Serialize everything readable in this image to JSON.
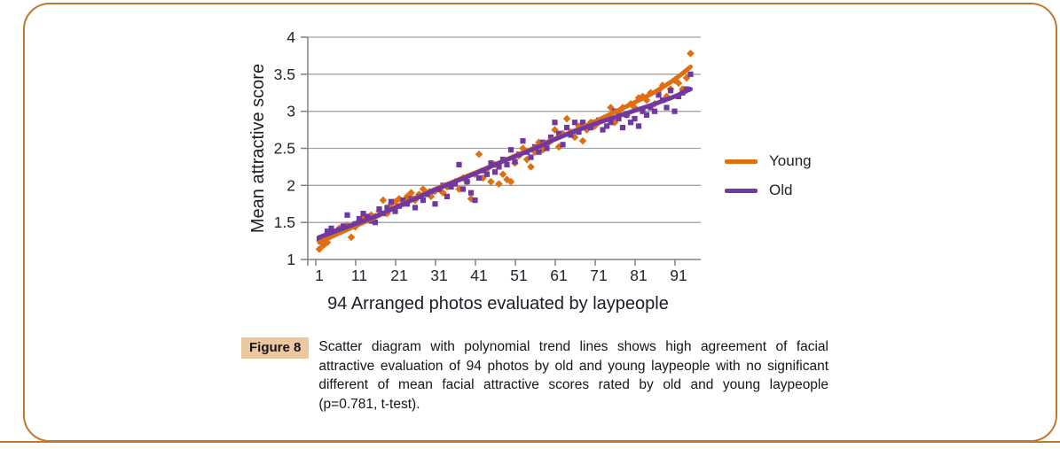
{
  "page": {
    "card_border_color": "#C1782F",
    "bottom_rule_color": "#C1782F",
    "background": "#ffffff"
  },
  "chart_data": {
    "type": "scatter",
    "title": "",
    "xlabel": "94 Arranged photos evaluated by laypeople",
    "ylabel": "Mean attractive score",
    "x_ticks": [
      1,
      11,
      21,
      31,
      41,
      51,
      61,
      71,
      81,
      91
    ],
    "y_ticks": [
      1,
      1.5,
      2,
      2.5,
      3,
      3.5,
      4
    ],
    "xlim": [
      1,
      94
    ],
    "ylim": [
      1,
      4
    ],
    "grid": "horizontal",
    "gridline_color": "#A3A3A3",
    "axis_color": "#808080",
    "tick_label_color": "#23232d",
    "legend_position": "right",
    "x_description": "photo rank 1 to 94, one point per photo, step 1",
    "series": [
      {
        "name": "Young",
        "marker": "diamond",
        "color": "#E06F12",
        "values": [
          1.14,
          1.19,
          1.23,
          1.4,
          1.35,
          1.42,
          1.4,
          1.46,
          1.3,
          1.44,
          1.52,
          1.58,
          1.55,
          1.6,
          1.58,
          1.65,
          1.8,
          1.62,
          1.75,
          1.78,
          1.82,
          1.75,
          1.85,
          1.9,
          1.8,
          1.88,
          1.95,
          1.9,
          1.85,
          1.92,
          1.95,
          1.9,
          1.98,
          2.0,
          2.05,
          1.95,
          2.1,
          2.05,
          1.82,
          2.15,
          2.42,
          2.1,
          2.22,
          2.05,
          2.28,
          2.02,
          2.15,
          2.08,
          2.05,
          2.3,
          2.4,
          2.5,
          2.35,
          2.25,
          2.45,
          2.58,
          2.48,
          2.55,
          2.6,
          2.75,
          2.52,
          2.7,
          2.9,
          2.72,
          2.65,
          2.8,
          2.6,
          2.75,
          2.85,
          2.8,
          2.85,
          2.88,
          2.9,
          3.05,
          2.85,
          3.0,
          3.05,
          2.95,
          3.1,
          3.05,
          3.18,
          3.2,
          3.15,
          3.25,
          3.1,
          3.28,
          3.35,
          3.2,
          3.3,
          3.42,
          3.38,
          3.3,
          3.45,
          3.78
        ]
      },
      {
        "name": "Old",
        "marker": "square",
        "color": "#7038A0",
        "values": [
          1.28,
          1.3,
          1.38,
          1.42,
          1.38,
          1.4,
          1.45,
          1.6,
          1.45,
          1.48,
          1.55,
          1.62,
          1.58,
          1.52,
          1.5,
          1.68,
          1.62,
          1.7,
          1.78,
          1.65,
          1.72,
          1.8,
          1.75,
          1.82,
          1.7,
          1.85,
          1.8,
          1.88,
          1.92,
          1.75,
          1.95,
          2.0,
          1.85,
          1.98,
          2.02,
          2.28,
          1.95,
          2.05,
          1.9,
          1.8,
          2.1,
          2.2,
          2.15,
          2.3,
          2.18,
          2.25,
          2.35,
          2.28,
          2.48,
          2.32,
          2.42,
          2.6,
          2.45,
          2.38,
          2.52,
          2.45,
          2.58,
          2.5,
          2.65,
          2.85,
          2.7,
          2.55,
          2.78,
          2.68,
          2.85,
          2.72,
          2.85,
          2.8,
          2.78,
          2.85,
          2.88,
          2.75,
          2.8,
          2.85,
          3.0,
          2.9,
          2.78,
          2.95,
          2.85,
          2.9,
          2.8,
          3.0,
          2.95,
          3.05,
          3.0,
          3.22,
          3.15,
          3.05,
          3.28,
          3.0,
          3.2,
          3.25,
          3.3,
          3.5
        ]
      }
    ],
    "trend_lines": [
      {
        "series": "Young",
        "type": "polynomial",
        "color": "#E06F12",
        "points": [
          [
            1,
            1.23
          ],
          [
            5,
            1.33
          ],
          [
            10,
            1.45
          ],
          [
            15,
            1.57
          ],
          [
            20,
            1.7
          ],
          [
            25,
            1.83
          ],
          [
            30,
            1.95
          ],
          [
            35,
            2.06
          ],
          [
            40,
            2.17
          ],
          [
            45,
            2.28
          ],
          [
            50,
            2.4
          ],
          [
            55,
            2.51
          ],
          [
            60,
            2.63
          ],
          [
            65,
            2.74
          ],
          [
            70,
            2.86
          ],
          [
            75,
            2.99
          ],
          [
            80,
            3.12
          ],
          [
            85,
            3.26
          ],
          [
            90,
            3.43
          ],
          [
            94,
            3.6
          ]
        ]
      },
      {
        "series": "Old",
        "type": "polynomial",
        "color": "#7038A0",
        "points": [
          [
            1,
            1.3
          ],
          [
            5,
            1.38
          ],
          [
            10,
            1.48
          ],
          [
            15,
            1.58
          ],
          [
            20,
            1.7
          ],
          [
            25,
            1.82
          ],
          [
            30,
            1.94
          ],
          [
            35,
            2.05
          ],
          [
            40,
            2.16
          ],
          [
            45,
            2.28
          ],
          [
            50,
            2.39
          ],
          [
            55,
            2.5
          ],
          [
            60,
            2.62
          ],
          [
            65,
            2.73
          ],
          [
            70,
            2.83
          ],
          [
            75,
            2.92
          ],
          [
            80,
            3.01
          ],
          [
            85,
            3.1
          ],
          [
            90,
            3.2
          ],
          [
            94,
            3.3
          ]
        ]
      }
    ]
  },
  "caption": {
    "label": "Figure 8",
    "label_bg": "#EBC89E",
    "text": "Scatter diagram with polynomial trend lines shows high agreement of facial attractive evaluation of 94 photos by old and young laypeople with no significant different of mean facial attractive scores rated by old and young laypeople (p=0.781, t-test)."
  }
}
